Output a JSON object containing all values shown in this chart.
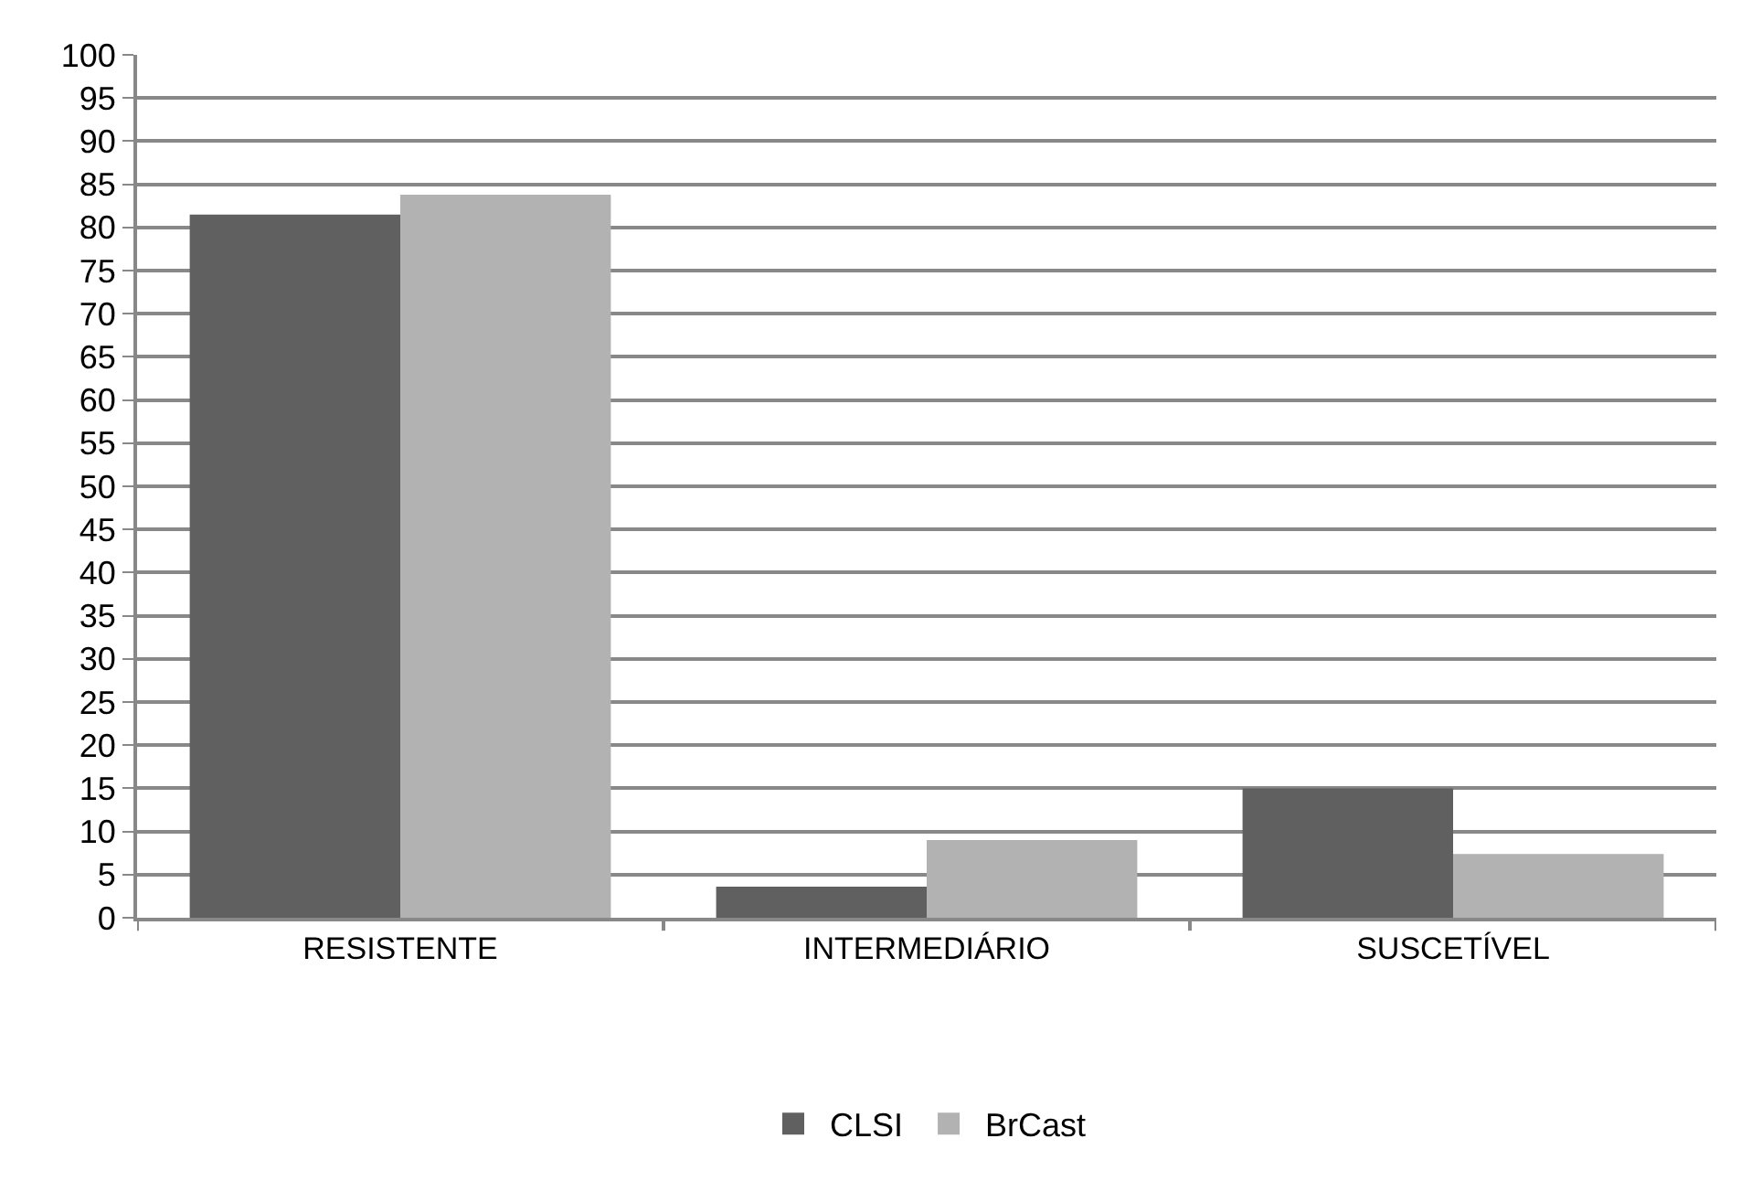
{
  "chart_data": {
    "type": "bar",
    "categories": [
      "RESISTENTE",
      "INTERMEDIÁRIO",
      "SUSCETÍVEL"
    ],
    "series": [
      {
        "name": "CLSI",
        "color": "#606060",
        "values": [
          81.5,
          3.6,
          15
        ]
      },
      {
        "name": "BrCast",
        "color": "#b2b2b2",
        "values": [
          83.8,
          9,
          7.4
        ]
      }
    ],
    "ylim": [
      0,
      100
    ],
    "yticks": [
      0,
      5,
      10,
      15,
      20,
      25,
      30,
      35,
      40,
      45,
      50,
      55,
      60,
      65,
      70,
      75,
      80,
      85,
      90,
      95,
      100
    ],
    "grid": "y",
    "legend": "bottom"
  }
}
